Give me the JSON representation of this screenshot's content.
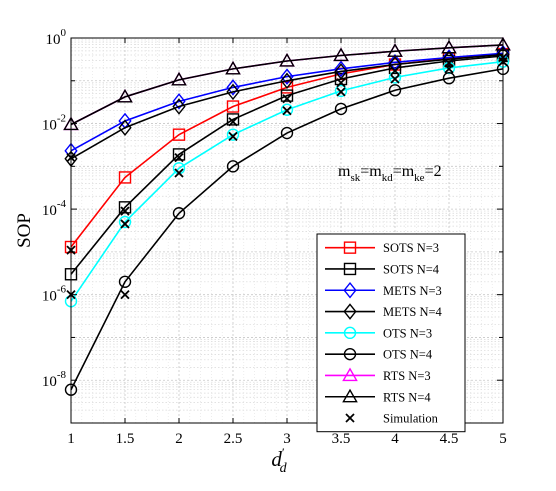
{
  "chart_data": {
    "type": "line",
    "ylabel": "SOP",
    "xlabel": {
      "base": "d",
      "sup": "′",
      "sub": "d"
    },
    "y_scale": "log",
    "xlim": [
      1,
      5
    ],
    "ylim_exp": [
      -9,
      0
    ],
    "grid": true,
    "x_ticks": [
      "1",
      "1.5",
      "2",
      "2.5",
      "3",
      "3.5",
      "4",
      "4.5",
      "5"
    ],
    "y_ticks": [
      {
        "exp": 0,
        "base": "10",
        "sup": "0"
      },
      {
        "exp": -2,
        "base": "10",
        "sup": "-2"
      },
      {
        "exp": -4,
        "base": "10",
        "sup": "-4"
      },
      {
        "exp": -6,
        "base": "10",
        "sup": "-6"
      },
      {
        "exp": -8,
        "base": "10",
        "sup": "-8"
      }
    ],
    "annotation": {
      "parts": [
        {
          "t": "m",
          "s": ""
        },
        {
          "t": "sk",
          "s": "sub"
        },
        {
          "t": "=m",
          "s": ""
        },
        {
          "t": "kd",
          "s": "sub"
        },
        {
          "t": "=m",
          "s": ""
        },
        {
          "t": "ke",
          "s": "sub"
        },
        {
          "t": "=2",
          "s": ""
        }
      ]
    },
    "legend_position": "lower-right",
    "x": [
      1,
      1.5,
      2,
      2.5,
      3,
      3.5,
      4,
      4.5,
      5
    ],
    "series": [
      {
        "name": "SOTS N=3",
        "color": "#ff0000",
        "marker": "square",
        "values": [
          1.3e-05,
          0.00055,
          0.0055,
          0.025,
          0.07,
          0.145,
          0.24,
          0.33,
          0.42
        ]
      },
      {
        "name": "SOTS N=4",
        "color": "#000000",
        "marker": "square",
        "values": [
          3e-06,
          0.00011,
          0.0019,
          0.0125,
          0.045,
          0.11,
          0.2,
          0.29,
          0.38
        ]
      },
      {
        "name": "METS N=3",
        "color": "#0000ff",
        "marker": "diamond",
        "values": [
          0.0023,
          0.0115,
          0.033,
          0.07,
          0.125,
          0.19,
          0.27,
          0.35,
          0.44
        ]
      },
      {
        "name": "METS N=4",
        "color": "#000000",
        "marker": "diamond",
        "values": [
          0.0015,
          0.008,
          0.025,
          0.055,
          0.1,
          0.165,
          0.24,
          0.32,
          0.41
        ]
      },
      {
        "name": "OTS N=3",
        "color": "#00ffff",
        "marker": "circle",
        "values": [
          7e-07,
          5e-05,
          0.0009,
          0.0055,
          0.021,
          0.058,
          0.12,
          0.2,
          0.28
        ]
      },
      {
        "name": "OTS N=4",
        "color": "#000000",
        "marker": "circle",
        "values": [
          6e-09,
          2e-06,
          8e-05,
          0.001,
          0.006,
          0.022,
          0.06,
          0.115,
          0.19
        ]
      },
      {
        "name": "RTS N=3",
        "color": "#ff00ff",
        "marker": "triangle",
        "values": [
          0.0095,
          0.042,
          0.105,
          0.19,
          0.29,
          0.39,
          0.49,
          0.59,
          0.69
        ]
      },
      {
        "name": "RTS N=4",
        "color": "#000000",
        "marker": "triangle",
        "values": [
          0.0095,
          0.042,
          0.105,
          0.19,
          0.29,
          0.39,
          0.49,
          0.59,
          0.69
        ]
      },
      {
        "name": "Simulation",
        "color": "#000000",
        "marker": "x",
        "line": false,
        "points": [
          [
            1,
            1.1e-05
          ],
          [
            1,
            1e-06
          ],
          [
            1,
            0.0016
          ],
          [
            1.5,
            9e-05
          ],
          [
            1.5,
            1e-06
          ],
          [
            1.5,
            4.5e-05
          ],
          [
            2,
            0.0016
          ],
          [
            2,
            0.0007
          ],
          [
            2.5,
            0.005
          ],
          [
            2.5,
            0.011
          ],
          [
            3,
            0.02
          ],
          [
            3,
            0.038
          ],
          [
            3.5,
            0.055
          ],
          [
            3.5,
            0.09
          ],
          [
            4,
            0.11
          ],
          [
            4,
            0.17
          ],
          [
            4.5,
            0.19
          ],
          [
            4.5,
            0.26
          ],
          [
            5,
            0.28
          ],
          [
            5,
            0.35
          ]
        ]
      }
    ]
  }
}
